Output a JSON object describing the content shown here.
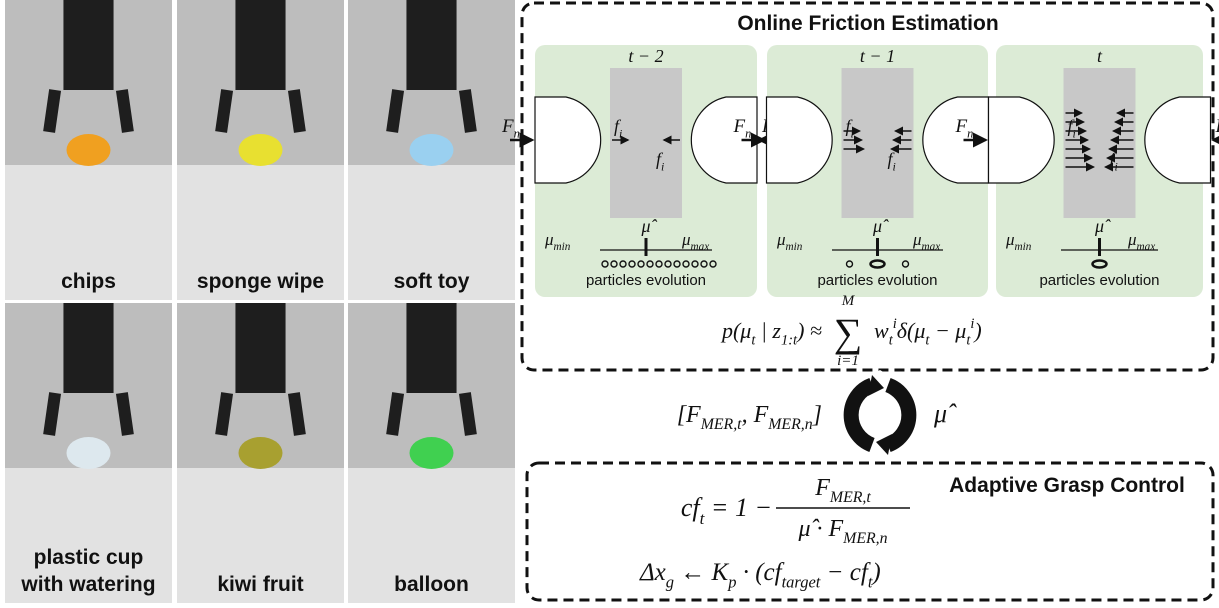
{
  "photos": [
    {
      "lines": [
        "chips"
      ]
    },
    {
      "lines": [
        "sponge wipe"
      ]
    },
    {
      "lines": [
        "soft toy"
      ]
    },
    {
      "lines": [
        "plastic cup",
        "with watering"
      ]
    },
    {
      "lines": [
        "kiwi fruit"
      ]
    },
    {
      "lines": [
        "balloon"
      ]
    }
  ],
  "estimation": {
    "title": "Online Friction Estimation",
    "panels": [
      {
        "time": "t − 2",
        "force_left": [
          {
            "t": "F",
            "sub": "n"
          }
        ],
        "force_right": [
          {
            "t": "F",
            "sub": "n"
          }
        ],
        "friction_left": [
          {
            "t": "f",
            "sub": "i"
          }
        ],
        "friction_right": [
          {
            "t": "f",
            "sub": "i"
          }
        ],
        "mu_min": [
          {
            "t": "μ",
            "sub": "min"
          }
        ],
        "mu_hat": [
          {
            "t": "μ̂"
          }
        ],
        "mu_max": [
          {
            "t": "μ",
            "sub": "max"
          }
        ],
        "caption": "particles evolution"
      },
      {
        "time": "t − 1",
        "force_left": [
          {
            "t": "F",
            "sub": "n"
          }
        ],
        "force_right": [
          {
            "t": "F",
            "sub": "n"
          }
        ],
        "friction_left": [
          {
            "t": "f",
            "sub": "i"
          }
        ],
        "friction_right": [
          {
            "t": "f",
            "sub": "i"
          }
        ],
        "mu_min": [
          {
            "t": "μ",
            "sub": "min"
          }
        ],
        "mu_hat": [
          {
            "t": "μ̂"
          }
        ],
        "mu_max": [
          {
            "t": "μ",
            "sub": "max"
          }
        ],
        "caption": "particles evolution"
      },
      {
        "time": "t",
        "force_left": [
          {
            "t": "F",
            "sub": "n"
          }
        ],
        "force_right": [
          {
            "t": "F",
            "sub": "n"
          }
        ],
        "friction_left": [
          {
            "t": "f",
            "sub": "i"
          }
        ],
        "friction_right": [
          {
            "t": "f",
            "sub": "i"
          }
        ],
        "mu_min": [
          {
            "t": "μ",
            "sub": "min"
          }
        ],
        "mu_hat": [
          {
            "t": "μ̂"
          }
        ],
        "mu_max": [
          {
            "t": "μ",
            "sub": "max"
          }
        ],
        "caption": "particles evolution"
      }
    ],
    "formula": {
      "lhs": [
        {
          "t": "p(μ",
          "sub": "t"
        },
        {
          "t": " | z",
          "sub": "1:t"
        },
        {
          "t": ") ≈"
        }
      ],
      "sum": {
        "symbol": "∑",
        "upper": "M",
        "lower": "i=1"
      },
      "rhs": [
        {
          "t": "w",
          "sub": "t",
          "sup": "i"
        },
        {
          "t": "δ(μ",
          "sub": "t"
        },
        {
          "t": " − μ",
          "sub": "t",
          "sup": "i"
        },
        {
          "t": ")"
        }
      ]
    }
  },
  "loop": {
    "input": [
      {
        "t": "[F",
        "sub": "MER,t"
      },
      {
        "t": ", F",
        "sub": "MER,n"
      },
      {
        "t": "]"
      }
    ],
    "output": [
      {
        "t": "μ̂"
      }
    ]
  },
  "control": {
    "title": "Adaptive Grasp Control",
    "eq1_lhs": [
      {
        "t": "cf",
        "sub": "t"
      },
      {
        "t": " = 1 −"
      }
    ],
    "eq1_num": [
      {
        "t": "F",
        "sub": "MER,t"
      }
    ],
    "eq1_den": [
      {
        "t": "μ̂ · F",
        "sub": "MER,n"
      }
    ],
    "eq2": [
      {
        "t": "Δx",
        "sub": "g"
      },
      {
        "t": " ← K",
        "sub": "p"
      },
      {
        "t": " · (cf",
        "sub": "target"
      },
      {
        "t": " − cf",
        "sub": "t"
      },
      {
        "t": ")"
      }
    ]
  }
}
